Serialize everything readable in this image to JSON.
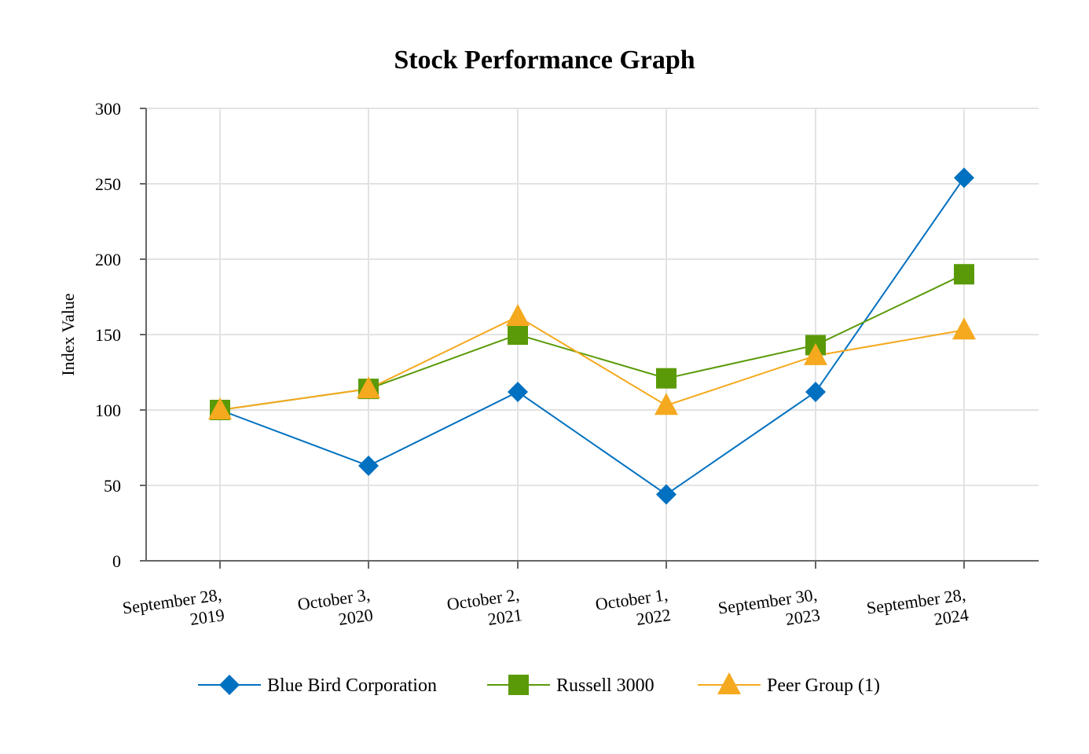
{
  "chart_data": {
    "type": "line",
    "title": "Stock Performance Graph",
    "ylabel": "Index Value",
    "xlabel": "",
    "ylim": [
      0,
      300
    ],
    "yticks": [
      0,
      50,
      100,
      150,
      200,
      250,
      300
    ],
    "grid": true,
    "legend_position": "bottom",
    "categories": [
      [
        "September 28,",
        "2019"
      ],
      [
        "October 3,",
        "2020"
      ],
      [
        "October 2,",
        "2021"
      ],
      [
        "October 1,",
        "2022"
      ],
      [
        "September 30,",
        "2023"
      ],
      [
        "September 28,",
        "2024"
      ]
    ],
    "series": [
      {
        "name": "Blue Bird Corporation",
        "marker": "diamond",
        "color": "#0070C0",
        "values": [
          100,
          63,
          112,
          44,
          112,
          254
        ]
      },
      {
        "name": "Russell 3000",
        "marker": "square",
        "color": "#5A9A08",
        "values": [
          100,
          114,
          150,
          121,
          143,
          190
        ]
      },
      {
        "name": "Peer Group (1)",
        "marker": "triangle",
        "color": "#F5A91F",
        "values": [
          100,
          114,
          162,
          103,
          136,
          153
        ]
      }
    ]
  },
  "colors": {
    "grid": "#e3e3e3",
    "axis": "#666666"
  }
}
